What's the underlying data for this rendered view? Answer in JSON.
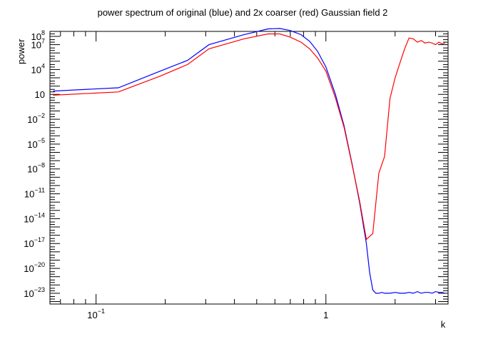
{
  "chart_data": {
    "type": "line",
    "title": "power spectrum of original (blue) and 2x coarser (red) Gaussian field 2",
    "xlabel": "k",
    "ylabel": "power",
    "x_scale": "log",
    "y_scale": "log",
    "xlim": [
      0.063,
      3.4
    ],
    "ylim_log10": [
      -24.3,
      8.6
    ],
    "x_tick_labels": [
      {
        "base": "10",
        "exp": "−1",
        "value": 0.1
      },
      {
        "base": "1",
        "exp": "",
        "value": 1
      }
    ],
    "y_tick_labels": [
      {
        "base": "10",
        "exp": "8",
        "log10": 8
      },
      {
        "base": "10",
        "exp": "7",
        "log10": 7
      },
      {
        "base": "10",
        "exp": "4",
        "log10": 4
      },
      {
        "base": "10",
        "exp": "",
        "log10": 1
      },
      {
        "base": "10",
        "exp": "−2",
        "log10": -2
      },
      {
        "base": "10",
        "exp": "−5",
        "log10": -5
      },
      {
        "base": "10",
        "exp": "−8",
        "log10": -8
      },
      {
        "base": "10",
        "exp": "−11",
        "log10": -11
      },
      {
        "base": "10",
        "exp": "−14",
        "log10": -14
      },
      {
        "base": "10",
        "exp": "−17",
        "log10": -17
      },
      {
        "base": "10",
        "exp": "−20",
        "log10": -20
      },
      {
        "base": "10",
        "exp": "−23",
        "log10": -23
      }
    ],
    "series": [
      {
        "name": "original",
        "color": "#0000ff",
        "k": [
          0.065,
          0.125,
          0.19,
          0.25,
          0.31,
          0.44,
          0.56,
          0.63,
          0.7,
          0.78,
          0.85,
          0.92,
          1.0,
          1.1,
          1.2,
          1.3,
          1.4,
          1.5,
          1.55,
          1.6,
          1.65,
          1.7,
          1.75,
          1.8,
          1.9,
          2.0,
          2.1,
          2.2,
          2.3,
          2.4,
          2.5,
          2.6,
          2.7,
          2.8,
          2.9,
          3.0,
          3.1,
          3.2,
          3.3
        ],
        "log10_power": [
          1.4,
          1.8,
          3.8,
          5.1,
          7.0,
          8.2,
          8.9,
          8.95,
          8.7,
          8.2,
          7.4,
          6.2,
          4.3,
          1.0,
          -2.8,
          -7.4,
          -12.0,
          -17.0,
          -20.5,
          -22.6,
          -23.0,
          -23.0,
          -22.9,
          -23.0,
          -23.0,
          -22.9,
          -23.0,
          -23.0,
          -22.9,
          -23.0,
          -22.8,
          -23.0,
          -22.9,
          -22.9,
          -23.0,
          -22.8,
          -22.9,
          -22.9,
          -23.0
        ]
      },
      {
        "name": "2x coarser",
        "color": "#ff0000",
        "k": [
          0.065,
          0.125,
          0.19,
          0.25,
          0.31,
          0.44,
          0.56,
          0.63,
          0.7,
          0.78,
          0.85,
          0.92,
          1.0,
          1.1,
          1.2,
          1.3,
          1.4,
          1.5,
          1.6,
          1.7,
          1.8,
          1.9,
          2.0,
          2.1,
          2.2,
          2.3,
          2.4,
          2.5,
          2.6,
          2.7,
          2.8,
          2.9,
          3.0,
          3.1,
          3.2,
          3.3
        ],
        "log10_power": [
          0.9,
          1.3,
          3.2,
          4.6,
          6.5,
          7.7,
          8.3,
          8.3,
          7.9,
          7.3,
          6.5,
          5.4,
          3.8,
          0.6,
          -3.0,
          -7.5,
          -11.8,
          -16.5,
          -15.8,
          -8.5,
          -6.5,
          0.5,
          3.0,
          4.8,
          6.5,
          7.8,
          7.7,
          7.3,
          7.5,
          7.2,
          7.3,
          7.2,
          7.0,
          7.3,
          7.1,
          7.2
        ]
      }
    ]
  }
}
